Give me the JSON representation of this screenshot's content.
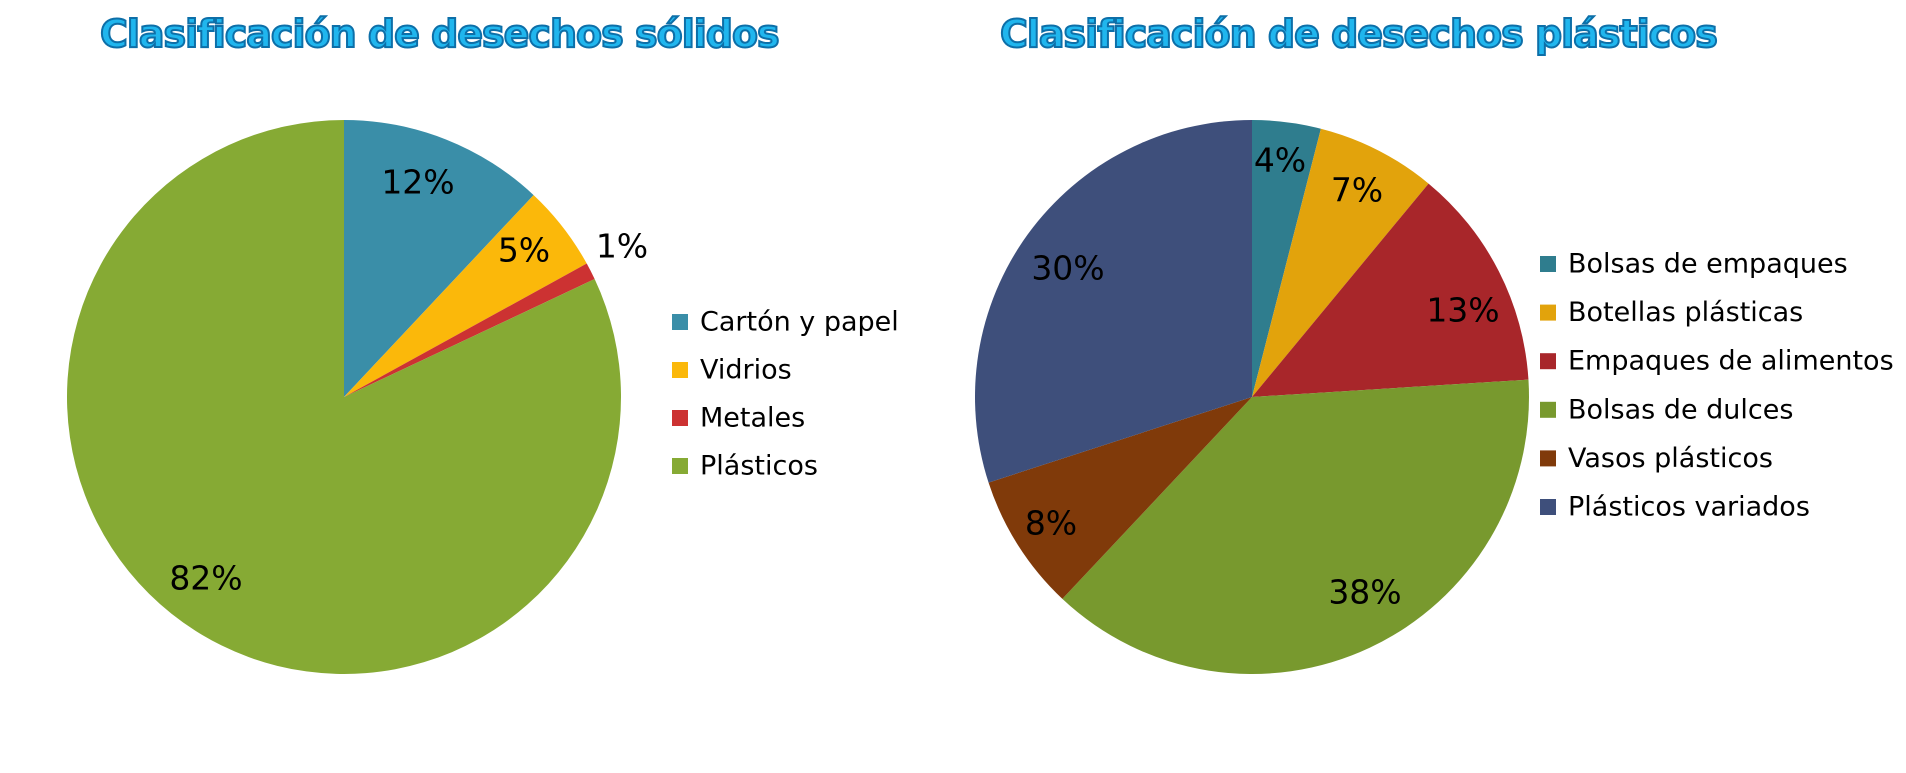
{
  "chart_data": [
    {
      "type": "pie",
      "title": "Clasificación de desechos sólidos",
      "slices": [
        {
          "name": "Cartón y papel",
          "value": 12,
          "label": "12%",
          "color": "#3a8ea8"
        },
        {
          "name": "Vidrios",
          "value": 5,
          "label": "5%",
          "color": "#fbb80a"
        },
        {
          "name": "Metales",
          "value": 1,
          "label": "1%",
          "color": "#cc3232"
        },
        {
          "name": "Plásticos",
          "value": 82,
          "label": "82%",
          "color": "#86aa34"
        }
      ],
      "legend_position": "right"
    },
    {
      "type": "pie",
      "title": "Clasificación de desechos plásticos",
      "slices": [
        {
          "name": "Bolsas de empaques",
          "value": 4,
          "label": "4%",
          "color": "#2f7d8e"
        },
        {
          "name": "Botellas plásticas",
          "value": 7,
          "label": "7%",
          "color": "#e2a30c"
        },
        {
          "name": "Empaques de alimentos",
          "value": 13,
          "label": "13%",
          "color": "#a8262a"
        },
        {
          "name": "Bolsas de dulces",
          "value": 38,
          "label": "38%",
          "color": "#78992e"
        },
        {
          "name": "Vasos plásticos",
          "value": 8,
          "label": "8%",
          "color": "#803a0a"
        },
        {
          "name": "Plásticos variados",
          "value": 30,
          "label": "30%",
          "color": "#3e4f7b"
        }
      ],
      "legend_position": "right"
    }
  ]
}
